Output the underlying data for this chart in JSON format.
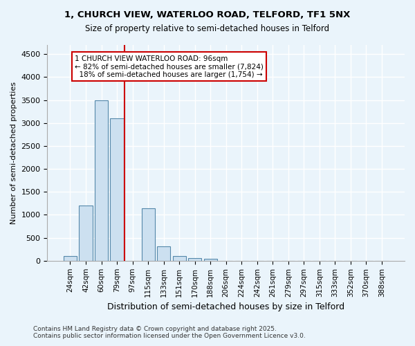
{
  "title_line1": "1, CHURCH VIEW, WATERLOO ROAD, TELFORD, TF1 5NX",
  "title_line2": "Size of property relative to semi-detached houses in Telford",
  "xlabel": "Distribution of semi-detached houses by size in Telford",
  "ylabel": "Number of semi-detached properties",
  "bin_labels": [
    "24sqm",
    "42sqm",
    "60sqm",
    "79sqm",
    "97sqm",
    "115sqm",
    "133sqm",
    "151sqm",
    "170sqm",
    "188sqm",
    "206sqm",
    "224sqm",
    "242sqm",
    "261sqm",
    "279sqm",
    "297sqm",
    "315sqm",
    "333sqm",
    "352sqm",
    "370sqm",
    "388sqm"
  ],
  "bar_values": [
    100,
    1200,
    3500,
    3100,
    0,
    1150,
    320,
    110,
    60,
    40,
    0,
    0,
    0,
    0,
    0,
    0,
    0,
    0,
    0,
    0,
    0
  ],
  "bar_color": "#cce0f0",
  "bar_edge_color": "#5588aa",
  "property_line_x": 3.5,
  "property_size": "96sqm",
  "pct_smaller": 82,
  "count_smaller": 7824,
  "pct_larger": 18,
  "count_larger": 1754,
  "annotation_label": "1 CHURCH VIEW WATERLOO ROAD: 96sqm",
  "line_color": "#cc0000",
  "ylim": [
    0,
    4700
  ],
  "yticks": [
    0,
    500,
    1000,
    1500,
    2000,
    2500,
    3000,
    3500,
    4000,
    4500
  ],
  "footer_line1": "Contains HM Land Registry data © Crown copyright and database right 2025.",
  "footer_line2": "Contains public sector information licensed under the Open Government Licence v3.0.",
  "background_color": "#eaf4fb",
  "grid_color": "#ffffff"
}
